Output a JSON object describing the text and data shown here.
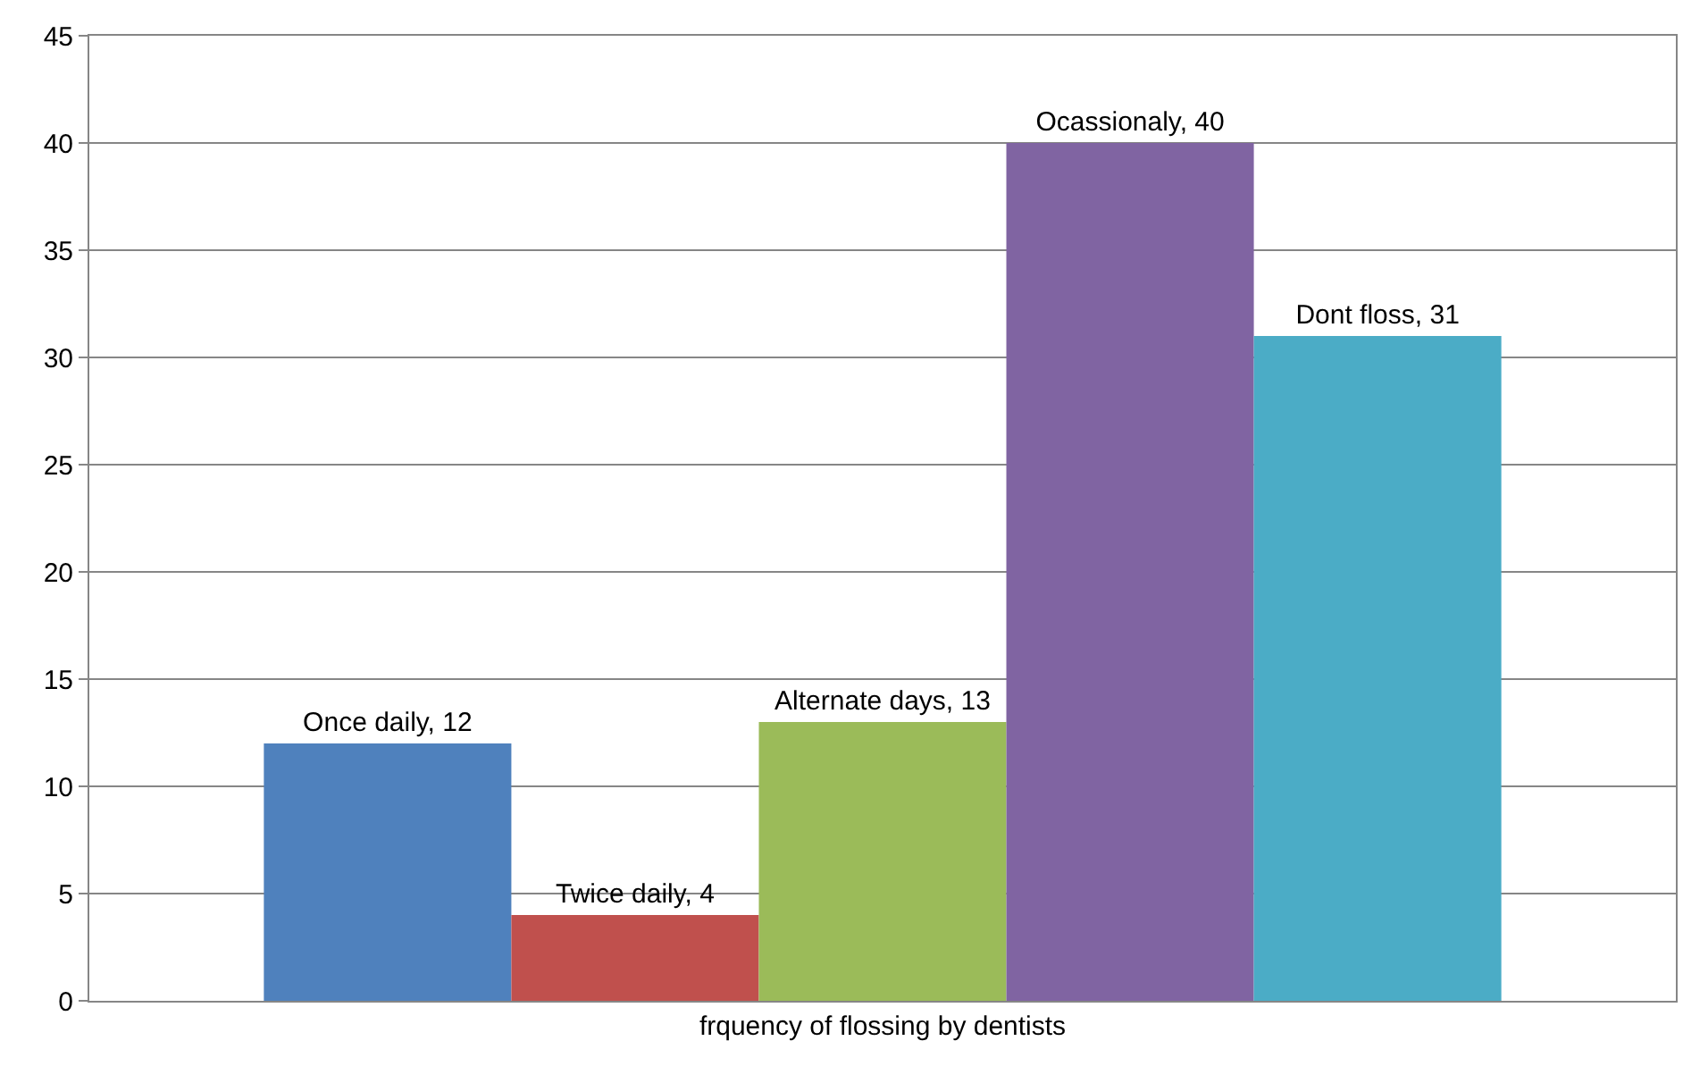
{
  "chart_data": {
    "type": "bar",
    "categories": [
      "frquency of flossing by dentists"
    ],
    "series": [
      {
        "color": "#4f81bd",
        "values": [
          12
        ],
        "value_labels": [
          "Once daily, 12"
        ]
      },
      {
        "color": "#c0504d",
        "values": [
          4
        ],
        "value_labels": [
          "Twice daily, 4"
        ]
      },
      {
        "color": "#9bbb59",
        "values": [
          13
        ],
        "value_labels": [
          "Alternate days, 13"
        ]
      },
      {
        "color": "#8064a2",
        "values": [
          40
        ],
        "value_labels": [
          "Ocassionaly, 40"
        ]
      },
      {
        "color": "#4bacc6",
        "values": [
          31
        ],
        "value_labels": [
          "Dont floss, 31"
        ]
      }
    ],
    "ylim": [
      0,
      45
    ],
    "yticks": [
      0,
      5,
      10,
      15,
      20,
      25,
      30,
      35,
      40,
      45
    ],
    "grid": "y",
    "legend": false
  }
}
